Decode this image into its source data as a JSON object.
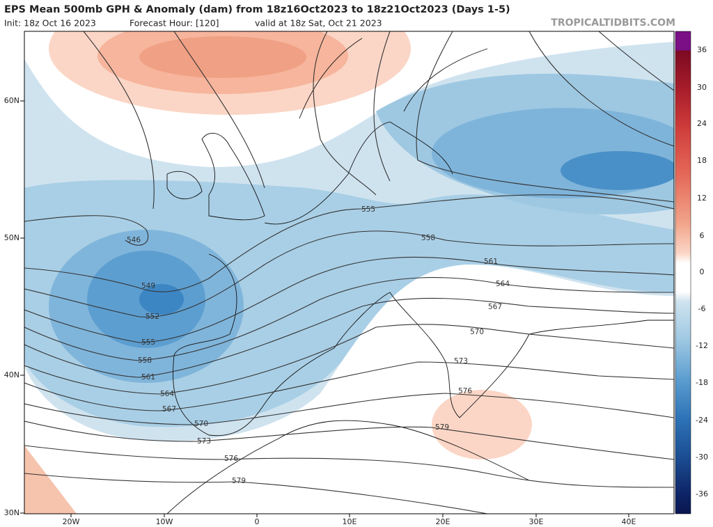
{
  "header": {
    "title": "EPS Mean 500mb GPH & Anomaly (dam) from 18z16Oct2023 to 18z21Oct2023 (Days 1-5)",
    "init": "Init: 18z Oct 16 2023",
    "forecast_hour": "Forecast Hour: [120]",
    "valid": "valid at 18z Sat, Oct 21 2023",
    "watermark": "TROPICALTIDBITS.COM"
  },
  "map": {
    "lat_labels": [
      "60N",
      "50N",
      "40N",
      "30N"
    ],
    "lon_labels": [
      "20W",
      "10W",
      "0",
      "10E",
      "20E",
      "30E",
      "40E"
    ],
    "contour_labels": [
      "546",
      "549",
      "552",
      "555",
      "558",
      "561",
      "564",
      "567",
      "570",
      "573",
      "576",
      "579",
      "555",
      "558",
      "561",
      "564",
      "567",
      "570",
      "573",
      "576",
      "579"
    ]
  },
  "colorbar": {
    "labels": [
      "36",
      "30",
      "24",
      "18",
      "12",
      "6",
      "0",
      "-6",
      "-12",
      "-18",
      "-24",
      "-30",
      "-36"
    ]
  }
}
